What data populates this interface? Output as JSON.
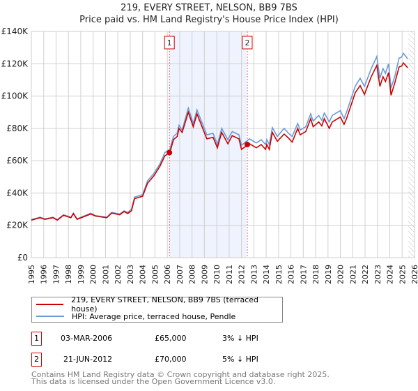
{
  "title": "219, EVERY STREET, NELSON, BB9 7BS",
  "subtitle": "Price paid vs. HM Land Registry's House Price Index (HPI)",
  "chart_data": {
    "type": "line",
    "ylim": [
      0,
      140000
    ],
    "xlim": [
      1995,
      2026
    ],
    "yticks": [
      0,
      20000,
      40000,
      60000,
      80000,
      100000,
      120000,
      140000
    ],
    "ytick_labels": [
      "£0",
      "£20K",
      "£40K",
      "£60K",
      "£80K",
      "£100K",
      "£120K",
      "£140K"
    ],
    "xticks": [
      1995,
      1996,
      1997,
      1998,
      1999,
      2000,
      2001,
      2002,
      2003,
      2004,
      2005,
      2006,
      2007,
      2008,
      2009,
      2010,
      2011,
      2012,
      2013,
      2014,
      2015,
      2016,
      2017,
      2018,
      2019,
      2020,
      2021,
      2022,
      2023,
      2024,
      2025,
      2026
    ],
    "grid": true,
    "x": [
      1995,
      1995.7,
      1996.1,
      1996.75,
      1997.1,
      1997.6,
      1998.2,
      1998.4,
      1998.7,
      1999.8,
      2000.2,
      2001.1,
      2001.5,
      2002.15,
      2002.5,
      2002.8,
      2003.1,
      2003.35,
      2004,
      2004.4,
      2004.9,
      2005.4,
      2005.8,
      2006.2,
      2006.5,
      2006.8,
      2006.95,
      2007.2,
      2007.7,
      2008.1,
      2008.4,
      2009.2,
      2009.7,
      2010.05,
      2010.4,
      2010.9,
      2011.25,
      2011.8,
      2012.0,
      2012.65,
      2013.2,
      2013.6,
      2013.95,
      2014.05,
      2014.25,
      2014.5,
      2014.9,
      2015.45,
      2015.8,
      2016.1,
      2016.55,
      2016.75,
      2017.2,
      2017.6,
      2017.8,
      2018.25,
      2018.5,
      2018.7,
      2019.1,
      2019.35,
      2020.0,
      2020.3,
      2020.5,
      2021.2,
      2021.6,
      2021.95,
      2022.5,
      2022.95,
      2023.2,
      2023.45,
      2023.65,
      2023.9,
      2024.1,
      2024.4,
      2024.75,
      2024.95,
      2025.1,
      2025.45
    ],
    "series": [
      {
        "name": "219, EVERY STREET, NELSON, BB9 7BS (terraced house)",
        "color": "#cc0000",
        "values": [
          23200,
          24700,
          23700,
          24700,
          23200,
          26200,
          24700,
          27200,
          23700,
          27000,
          25700,
          24700,
          27600,
          26500,
          28500,
          27300,
          29000,
          36500,
          38000,
          46000,
          50500,
          56500,
          63000,
          65000,
          73000,
          75000,
          80000,
          77500,
          90000,
          81000,
          89000,
          73500,
          74500,
          68000,
          77500,
          70500,
          75500,
          73500,
          67000,
          70500,
          68000,
          70000,
          67000,
          70000,
          67000,
          77500,
          72000,
          76500,
          74000,
          71500,
          80000,
          76000,
          78000,
          86000,
          81000,
          84000,
          81500,
          86000,
          80000,
          84000,
          87000,
          82500,
          86000,
          102000,
          106500,
          101000,
          112000,
          119000,
          106000,
          112000,
          109000,
          114500,
          100500,
          108000,
          118000,
          118500,
          120500,
          117500
        ]
      },
      {
        "name": "HPI: Average price, terraced house, Pendle",
        "color": "#6a9bd8",
        "values": [
          23500,
          25000,
          24000,
          25000,
          23500,
          26500,
          25000,
          27500,
          24000,
          27500,
          26000,
          25000,
          28000,
          27000,
          29000,
          28000,
          30000,
          37500,
          39000,
          47500,
          52000,
          58000,
          65000,
          67000,
          75000,
          77000,
          82000,
          79000,
          92500,
          83000,
          91500,
          76000,
          77000,
          70000,
          80000,
          73000,
          78000,
          76000,
          69500,
          73500,
          71000,
          73000,
          70000,
          73000,
          70000,
          80500,
          75000,
          80000,
          77000,
          75000,
          83000,
          79000,
          81000,
          89000,
          84500,
          88000,
          85000,
          89500,
          84000,
          88000,
          91000,
          86000,
          90000,
          106000,
          111000,
          106000,
          117000,
          124500,
          111000,
          117000,
          114000,
          120000,
          105000,
          112000,
          123500,
          124000,
          126500,
          123000
        ]
      }
    ],
    "transactions": [
      {
        "id": "1",
        "x": 2006.17,
        "date": "03-MAR-2006",
        "price": 65000,
        "price_label": "£65,000",
        "hpi_diff": "3% ↓ HPI"
      },
      {
        "id": "2",
        "x": 2012.47,
        "date": "21-JUN-2012",
        "price": 70000,
        "price_label": "£70,000",
        "hpi_diff": "5% ↓ HPI"
      }
    ],
    "shaded_range": [
      2006.17,
      2012.38
    ],
    "hatched_from": 2025.5
  },
  "footer": [
    "Contains HM Land Registry data © Crown copyright and database right 2025.",
    "This data is licensed under the Open Government Licence v3.0."
  ]
}
